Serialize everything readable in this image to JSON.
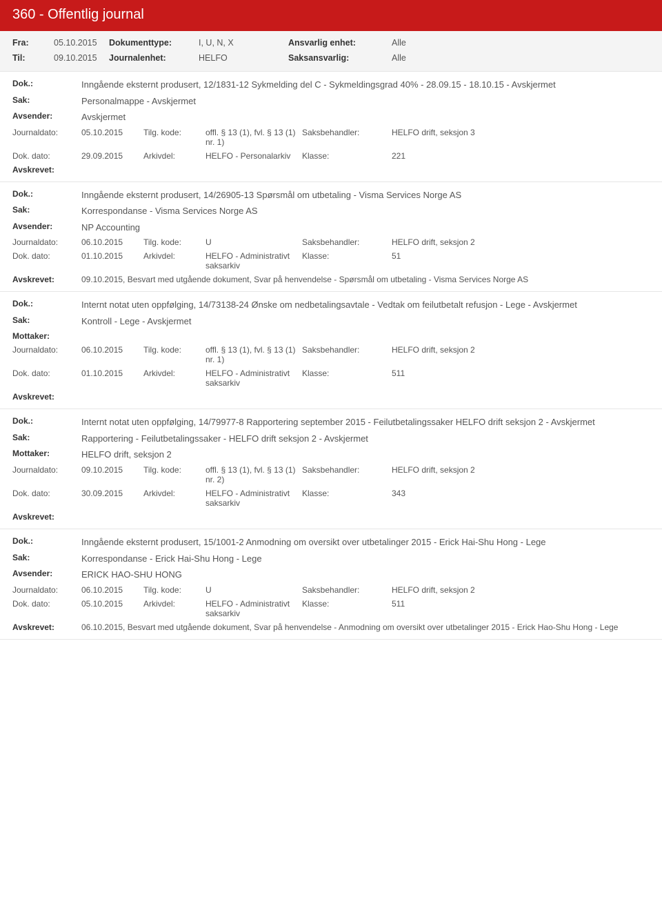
{
  "colors": {
    "header_bg": "#c71a1a",
    "header_text": "#ffffff",
    "filter_bg": "#f4f4f4",
    "border": "#e6e6e6",
    "text": "#404040",
    "label": "#333333"
  },
  "header": {
    "title": "360 - Offentlig journal"
  },
  "filters": {
    "fra_label": "Fra:",
    "fra_value": "05.10.2015",
    "til_label": "Til:",
    "til_value": "09.10.2015",
    "doktype_label": "Dokumenttype:",
    "doktype_value": "I, U, N, X",
    "journalenhet_label": "Journalenhet:",
    "journalenhet_value": "HELFO",
    "ansvarlig_label": "Ansvarlig enhet:",
    "ansvarlig_value": "Alle",
    "saksansvarlig_label": "Saksansvarlig:",
    "saksansvarlig_value": "Alle"
  },
  "labels": {
    "dok": "Dok.:",
    "sak": "Sak:",
    "avsender": "Avsender:",
    "mottaker": "Mottaker:",
    "journaldato": "Journaldato:",
    "dokdato": "Dok. dato:",
    "tilgkode": "Tilg. kode:",
    "arkivdel": "Arkivdel:",
    "saksbehandler": "Saksbehandler:",
    "klasse": "Klasse:",
    "avskrevet": "Avskrevet:"
  },
  "entries": [
    {
      "dok": "Inngående eksternt produsert, 12/1831-12 Sykmelding del C - Sykmeldingsgrad 40% - 28.09.15 - 18.10.15 - Avskjermet",
      "sak": "Personalmappe - Avskjermet",
      "party_label": "Avsender:",
      "party_value": "Avskjermet",
      "journaldato": "05.10.2015",
      "tilgkode": "offl. § 13 (1), fvl. § 13 (1) nr. 1)",
      "saksbehandler": "HELFO drift, seksjon 3",
      "dokdato": "29.09.2015",
      "arkivdel": "HELFO - Personalarkiv",
      "klasse": "221",
      "avskrevet": ""
    },
    {
      "dok": "Inngående eksternt produsert, 14/26905-13 Spørsmål om utbetaling - Visma Services Norge AS",
      "sak": "Korrespondanse - Visma Services Norge AS",
      "party_label": "Avsender:",
      "party_value": "NP Accounting",
      "journaldato": "06.10.2015",
      "tilgkode": "U",
      "saksbehandler": "HELFO drift, seksjon 2",
      "dokdato": "01.10.2015",
      "arkivdel": "HELFO - Administrativt saksarkiv",
      "klasse": "51",
      "avskrevet": "09.10.2015, Besvart med utgående dokument, Svar på henvendelse - Spørsmål om utbetaling - Visma Services Norge AS"
    },
    {
      "dok": "Internt notat uten oppfølging, 14/73138-24 Ønske om nedbetalingsavtale - Vedtak om feilutbetalt refusjon - Lege - Avskjermet",
      "sak": "Kontroll - Lege - Avskjermet",
      "party_label": "Mottaker:",
      "party_value": "",
      "journaldato": "06.10.2015",
      "tilgkode": "offl. § 13 (1), fvl. § 13 (1) nr. 1)",
      "saksbehandler": "HELFO drift, seksjon 2",
      "dokdato": "01.10.2015",
      "arkivdel": "HELFO - Administrativt saksarkiv",
      "klasse": "511",
      "avskrevet": ""
    },
    {
      "dok": "Internt notat uten oppfølging, 14/79977-8 Rapportering september 2015 - Feilutbetalingssaker HELFO drift seksjon 2 - Avskjermet",
      "sak": "Rapportering - Feilutbetalingssaker - HELFO drift seksjon 2 - Avskjermet",
      "party_label": "Mottaker:",
      "party_value": "HELFO drift, seksjon 2",
      "journaldato": "09.10.2015",
      "tilgkode": "offl. § 13 (1), fvl. § 13 (1) nr. 2)",
      "saksbehandler": "HELFO drift, seksjon 2",
      "dokdato": "30.09.2015",
      "arkivdel": "HELFO - Administrativt saksarkiv",
      "klasse": "343",
      "avskrevet": ""
    },
    {
      "dok": "Inngående eksternt produsert, 15/1001-2 Anmodning om oversikt over utbetalinger 2015 - Erick Hai-Shu Hong - Lege",
      "sak": "Korrespondanse - Erick Hai-Shu Hong - Lege",
      "party_label": "Avsender:",
      "party_value": "ERICK HAO-SHU HONG",
      "journaldato": "06.10.2015",
      "tilgkode": "U",
      "saksbehandler": "HELFO drift, seksjon 2",
      "dokdato": "05.10.2015",
      "arkivdel": "HELFO - Administrativt saksarkiv",
      "klasse": "511",
      "avskrevet": "06.10.2015, Besvart med utgående dokument, Svar på henvendelse - Anmodning om oversikt over utbetalinger 2015 - Erick Hao-Shu Hong - Lege"
    }
  ]
}
